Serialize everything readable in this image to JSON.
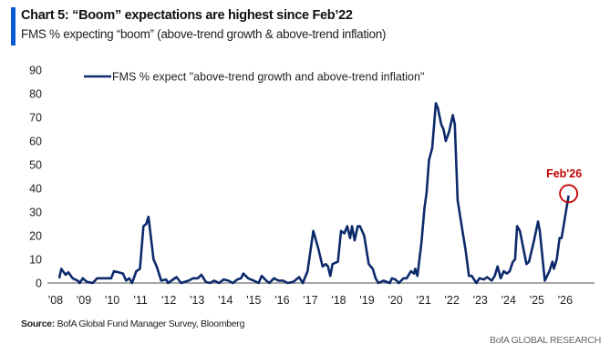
{
  "header": {
    "title": "Chart 5: “Boom” expectations are highest since Feb’22",
    "subtitle": "FMS % expecting “boom” (above-trend growth & above-trend inflation)"
  },
  "footer": {
    "source_label": "Source:",
    "source_text": " BofA Global Fund Manager Survey, Bloomberg",
    "brand": "BofA GLOBAL RESEARCH"
  },
  "chart_data": {
    "type": "line",
    "title": "Chart 5: “Boom” expectations are highest since Feb’22",
    "subtitle": "FMS % expecting “boom” (above-trend growth & above-trend inflation)",
    "xlabel": "",
    "ylabel": "",
    "ylim": [
      0,
      90
    ],
    "xlim": [
      2008,
      2026.9
    ],
    "yticks": [
      0,
      10,
      20,
      30,
      40,
      50,
      60,
      70,
      80,
      90
    ],
    "xtick_labels": [
      "'08",
      "'09",
      "'10",
      "'11",
      "'12",
      "'13",
      "'14",
      "'15",
      "'16",
      "'17",
      "'18",
      "'19",
      "'20",
      "'21",
      "'22",
      "'23",
      "'24",
      "'25",
      "'26"
    ],
    "xtick_years": [
      2008,
      2009,
      2010,
      2011,
      2012,
      2013,
      2014,
      2015,
      2016,
      2017,
      2018,
      2019,
      2020,
      2021,
      2022,
      2023,
      2024,
      2025,
      2026
    ],
    "grid": false,
    "legend_placement": "top-left",
    "colors": {
      "series": "#0c2a6b",
      "annotation": "#c00000",
      "axis": "#888888"
    },
    "annotation": {
      "label": "Feb'26",
      "x": 2026.12,
      "y": 37
    },
    "series": [
      {
        "name": "FMS % expect \"above-trend growth and above-trend inflation\"",
        "points": [
          [
            2008.13,
            2
          ],
          [
            2008.2,
            6
          ],
          [
            2008.35,
            3.5
          ],
          [
            2008.45,
            4.5
          ],
          [
            2008.6,
            2
          ],
          [
            2008.78,
            1
          ],
          [
            2008.85,
            0
          ],
          [
            2008.96,
            2
          ],
          [
            2009.1,
            0.5
          ],
          [
            2009.31,
            0
          ],
          [
            2009.47,
            2
          ],
          [
            2009.63,
            2
          ],
          [
            2009.8,
            2
          ],
          [
            2009.96,
            2
          ],
          [
            2010.06,
            5
          ],
          [
            2010.22,
            4.5
          ],
          [
            2010.38,
            4
          ],
          [
            2010.49,
            1
          ],
          [
            2010.6,
            2
          ],
          [
            2010.7,
            0
          ],
          [
            2010.85,
            5
          ],
          [
            2010.98,
            6
          ],
          [
            2011.1,
            24
          ],
          [
            2011.2,
            25
          ],
          [
            2011.28,
            28
          ],
          [
            2011.46,
            10
          ],
          [
            2011.57,
            7
          ],
          [
            2011.73,
            1
          ],
          [
            2011.9,
            1.5
          ],
          [
            2011.97,
            0
          ],
          [
            2012.27,
            2.5
          ],
          [
            2012.43,
            0
          ],
          [
            2012.7,
            1
          ],
          [
            2012.86,
            2
          ],
          [
            2013.02,
            2
          ],
          [
            2013.15,
            3.5
          ],
          [
            2013.3,
            0.5
          ],
          [
            2013.45,
            0
          ],
          [
            2013.6,
            1
          ],
          [
            2013.77,
            0
          ],
          [
            2013.94,
            1.5
          ],
          [
            2014.1,
            1
          ],
          [
            2014.26,
            0
          ],
          [
            2014.42,
            1.5
          ],
          [
            2014.55,
            2
          ],
          [
            2014.63,
            4
          ],
          [
            2014.8,
            2
          ],
          [
            2015.0,
            1
          ],
          [
            2015.17,
            0
          ],
          [
            2015.28,
            3
          ],
          [
            2015.44,
            1
          ],
          [
            2015.55,
            0
          ],
          [
            2015.71,
            2
          ],
          [
            2015.87,
            1
          ],
          [
            2016.03,
            1
          ],
          [
            2016.2,
            0
          ],
          [
            2016.4,
            0.5
          ],
          [
            2016.6,
            2.5
          ],
          [
            2016.73,
            0
          ],
          [
            2016.9,
            5
          ],
          [
            2017.1,
            22
          ],
          [
            2017.27,
            15
          ],
          [
            2017.43,
            7
          ],
          [
            2017.54,
            8
          ],
          [
            2017.62,
            7
          ],
          [
            2017.7,
            3
          ],
          [
            2017.78,
            8
          ],
          [
            2017.97,
            9
          ],
          [
            2018.08,
            22
          ],
          [
            2018.2,
            21
          ],
          [
            2018.3,
            24
          ],
          [
            2018.4,
            19
          ],
          [
            2018.47,
            24
          ],
          [
            2018.56,
            18
          ],
          [
            2018.67,
            24
          ],
          [
            2018.75,
            24
          ],
          [
            2018.9,
            20
          ],
          [
            2019.06,
            8
          ],
          [
            2019.2,
            6
          ],
          [
            2019.3,
            2
          ],
          [
            2019.4,
            0
          ],
          [
            2019.58,
            1
          ],
          [
            2019.8,
            0
          ],
          [
            2019.88,
            2
          ],
          [
            2020.0,
            1.5
          ],
          [
            2020.12,
            0
          ],
          [
            2020.29,
            2
          ],
          [
            2020.4,
            2
          ],
          [
            2020.55,
            5
          ],
          [
            2020.66,
            4
          ],
          [
            2020.7,
            6
          ],
          [
            2020.78,
            3
          ],
          [
            2020.92,
            17
          ],
          [
            2021.03,
            32
          ],
          [
            2021.1,
            38
          ],
          [
            2021.19,
            52
          ],
          [
            2021.3,
            57
          ],
          [
            2021.43,
            76
          ],
          [
            2021.5,
            74
          ],
          [
            2021.62,
            67
          ],
          [
            2021.7,
            65
          ],
          [
            2021.78,
            60
          ],
          [
            2021.9,
            64
          ],
          [
            2022.03,
            71
          ],
          [
            2022.1,
            67
          ],
          [
            2022.2,
            35
          ],
          [
            2022.37,
            22
          ],
          [
            2022.48,
            14
          ],
          [
            2022.6,
            3
          ],
          [
            2022.7,
            3
          ],
          [
            2022.86,
            0
          ],
          [
            2022.97,
            2
          ],
          [
            2023.13,
            1.5
          ],
          [
            2023.24,
            2.5
          ],
          [
            2023.4,
            1
          ],
          [
            2023.51,
            3
          ],
          [
            2023.61,
            7
          ],
          [
            2023.72,
            2
          ],
          [
            2023.83,
            5
          ],
          [
            2023.94,
            4
          ],
          [
            2024.04,
            5
          ],
          [
            2024.15,
            9
          ],
          [
            2024.23,
            10
          ],
          [
            2024.3,
            24
          ],
          [
            2024.4,
            22
          ],
          [
            2024.63,
            8
          ],
          [
            2024.72,
            9
          ],
          [
            2024.9,
            18
          ],
          [
            2025.04,
            26
          ],
          [
            2025.1,
            22
          ],
          [
            2025.28,
            1
          ],
          [
            2025.44,
            5
          ],
          [
            2025.55,
            9
          ],
          [
            2025.6,
            6
          ],
          [
            2025.7,
            10
          ],
          [
            2025.8,
            19
          ],
          [
            2025.87,
            19
          ],
          [
            2026.12,
            37
          ]
        ]
      }
    ]
  }
}
